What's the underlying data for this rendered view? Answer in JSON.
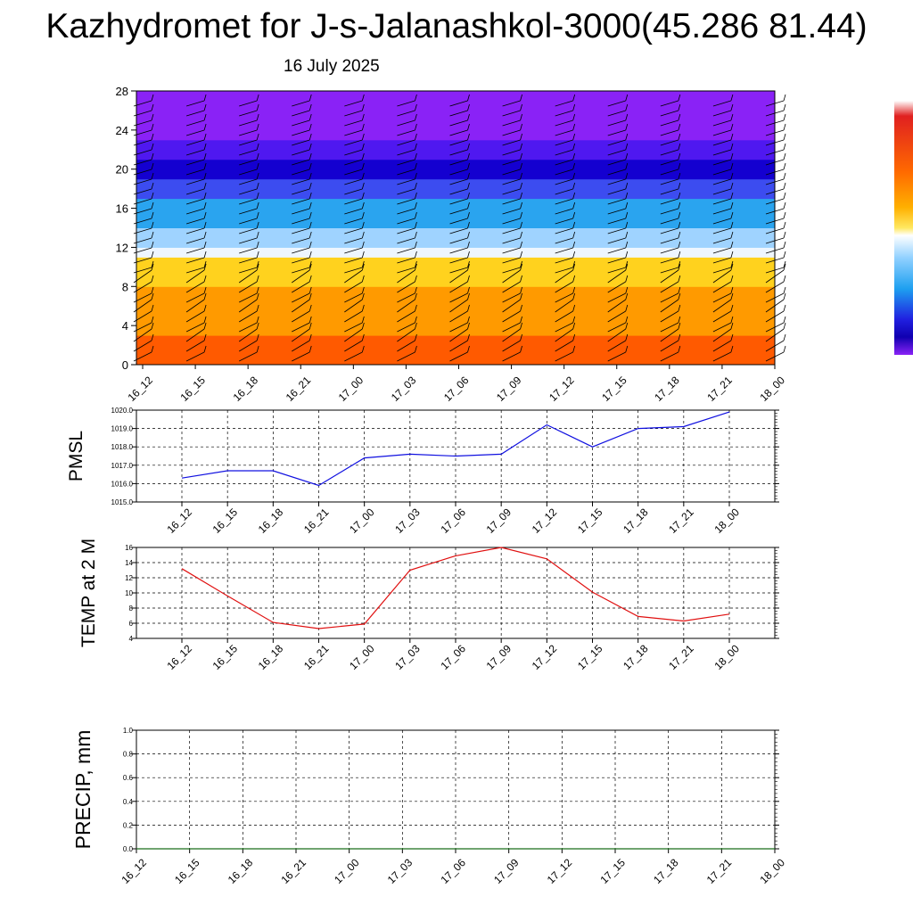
{
  "header": {
    "title": "Kazhydromet for J-s-Jalanashkol-3000(45.286 81.44)",
    "date": "16 July 2025"
  },
  "colors": {
    "pmsl_line": "#1010e0",
    "temp_line": "#e01010",
    "precip_line": "#1a6e1a",
    "grid": "#000000",
    "wind_barb": "#000000"
  },
  "chart_data": [
    {
      "id": "sounding",
      "type": "heatmap",
      "title": "",
      "xlabel": "",
      "ylabel": "",
      "x": [
        "16_12",
        "16_15",
        "16_18",
        "16_21",
        "17_00",
        "17_03",
        "17_06",
        "17_09",
        "17_12",
        "17_15",
        "17_18",
        "17_21",
        "18_00"
      ],
      "yticks": [
        0,
        4,
        8,
        12,
        16,
        20,
        24,
        28
      ],
      "ylim": [
        0,
        28
      ],
      "colorbar": "rainbow, purple (top) to red (bottom)",
      "color_bands": [
        {
          "y_from": 0,
          "y_to": 3,
          "color": "#ff5a00"
        },
        {
          "y_from": 3,
          "y_to": 8,
          "color": "#ff9a00"
        },
        {
          "y_from": 8,
          "y_to": 11,
          "color": "#ffd21e"
        },
        {
          "y_from": 11,
          "y_to": 12,
          "color": "#eef6ff"
        },
        {
          "y_from": 12,
          "y_to": 14,
          "color": "#9fd3ff"
        },
        {
          "y_from": 14,
          "y_to": 17,
          "color": "#2aa4ef"
        },
        {
          "y_from": 17,
          "y_to": 19,
          "color": "#3c4cf0"
        },
        {
          "y_from": 19,
          "y_to": 21,
          "color": "#1400d0"
        },
        {
          "y_from": 21,
          "y_to": 23,
          "color": "#4f18f0"
        },
        {
          "y_from": 23,
          "y_to": 28,
          "color": "#8a22f6"
        }
      ],
      "wind_barbs": "westerly barbs at every grid column and level"
    },
    {
      "id": "pmsl",
      "type": "line",
      "ylabel": "PMSL",
      "x": [
        "16_12",
        "16_15",
        "16_18",
        "16_21",
        "17_00",
        "17_03",
        "17_06",
        "17_09",
        "17_12",
        "17_15",
        "17_18",
        "17_21",
        "18_00"
      ],
      "ylim": [
        1015.0,
        1020.0
      ],
      "yticks": [
        "1015.0",
        "1016.0",
        "1017.0",
        "1018.0",
        "1019.0",
        "1020.0"
      ],
      "grid": true,
      "series": [
        {
          "values": [
            1016.3,
            1016.7,
            1016.7,
            1015.9,
            1017.4,
            1017.6,
            1017.5,
            1017.6,
            1019.2,
            1018.0,
            1019.0,
            1019.1,
            1019.9
          ]
        }
      ]
    },
    {
      "id": "temp",
      "type": "line",
      "ylabel": "TEMP at 2 M",
      "x": [
        "16_12",
        "16_15",
        "16_18",
        "16_21",
        "17_00",
        "17_03",
        "17_06",
        "17_09",
        "17_12",
        "17_15",
        "17_18",
        "17_21",
        "18_00"
      ],
      "ylim": [
        4,
        16
      ],
      "yticks": [
        "4",
        "6",
        "8",
        "10",
        "12",
        "14",
        "16"
      ],
      "grid": true,
      "series": [
        {
          "values": [
            13.2,
            9.6,
            6.1,
            5.3,
            5.9,
            13.0,
            14.9,
            16.0,
            14.5,
            10.1,
            6.9,
            6.3,
            7.2
          ]
        }
      ]
    },
    {
      "id": "precip",
      "type": "line",
      "ylabel": "PRECIP, mm",
      "x": [
        "16_12",
        "16_15",
        "16_18",
        "16_21",
        "17_00",
        "17_03",
        "17_06",
        "17_09",
        "17_12",
        "17_15",
        "17_18",
        "17_21",
        "18_00"
      ],
      "ylim": [
        0.0,
        1.0
      ],
      "yticks": [
        "0.0",
        "0.2",
        "0.4",
        "0.6",
        "0.8",
        "1.0"
      ],
      "grid": true,
      "series": [
        {
          "values": [
            0,
            0,
            0,
            0,
            0,
            0,
            0,
            0,
            0,
            0,
            0,
            0,
            0
          ]
        }
      ]
    }
  ]
}
